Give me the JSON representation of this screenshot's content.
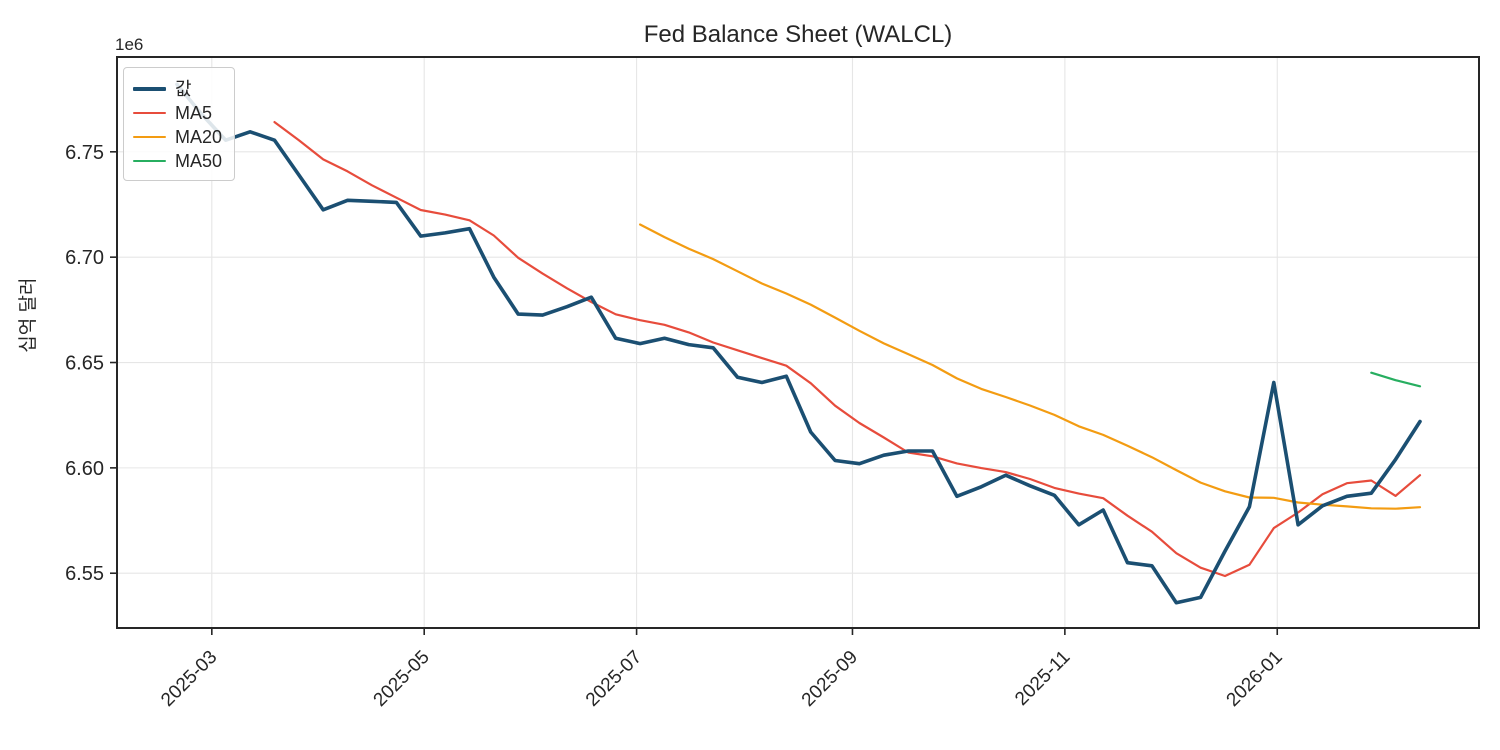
{
  "figure": {
    "background": "#ffffff",
    "text_color": "#262626",
    "grid_color": "#e6e6e6",
    "spine_color": "#262626"
  },
  "chart_data": {
    "type": "line",
    "title": "Fed Balance Sheet (WALCL)",
    "xlabel": "",
    "ylabel": "십억 달러",
    "y_axis_multiplier": "1e6",
    "grid": true,
    "legend_position": "upper-left",
    "x_tick_labels": [
      "2025-03",
      "2025-05",
      "2025-07",
      "2025-09",
      "2025-11",
      "2026-01"
    ],
    "y_ticks": [
      6.55,
      6.6,
      6.65,
      6.7,
      6.75
    ],
    "ylim": [
      6.524,
      6.795
    ],
    "x_start_date": "2025-02-19",
    "x_frequency": "weekly",
    "dates": [
      "2025-02-19",
      "2025-02-26",
      "2025-03-05",
      "2025-03-12",
      "2025-03-19",
      "2025-03-26",
      "2025-04-02",
      "2025-04-09",
      "2025-04-16",
      "2025-04-23",
      "2025-04-30",
      "2025-05-07",
      "2025-05-14",
      "2025-05-21",
      "2025-05-28",
      "2025-06-04",
      "2025-06-11",
      "2025-06-18",
      "2025-06-25",
      "2025-07-02",
      "2025-07-09",
      "2025-07-16",
      "2025-07-23",
      "2025-07-30",
      "2025-08-06",
      "2025-08-13",
      "2025-08-20",
      "2025-08-27",
      "2025-09-03",
      "2025-09-10",
      "2025-09-17",
      "2025-09-24",
      "2025-10-01",
      "2025-10-08",
      "2025-10-15",
      "2025-10-22",
      "2025-10-29",
      "2025-11-05",
      "2025-11-12",
      "2025-11-19",
      "2025-11-26",
      "2025-12-03",
      "2025-12-10",
      "2025-12-17",
      "2025-12-24",
      "2025-12-31",
      "2026-01-07",
      "2026-01-14",
      "2026-01-21",
      "2026-01-28",
      "2026-02-04",
      "2026-02-11"
    ],
    "values_unit": "millions of USD x 1e6 (axis offset 1e6)",
    "series": [
      {
        "key": "value",
        "name": "값",
        "color": "#1b4f72",
        "line_width": 3.6,
        "values": [
          6.782,
          6.768,
          6.7555,
          6.7595,
          6.7555,
          6.739,
          6.7225,
          6.727,
          6.7265,
          6.726,
          6.71,
          6.7115,
          6.7135,
          6.6905,
          6.673,
          6.6725,
          6.6765,
          6.681,
          6.6615,
          6.659,
          6.6615,
          6.6585,
          6.657,
          6.643,
          6.6405,
          6.6435,
          6.617,
          6.6035,
          6.602,
          6.606,
          6.608,
          6.608,
          6.5865,
          6.591,
          6.5965,
          6.5915,
          6.587,
          6.573,
          6.58,
          6.555,
          6.5535,
          6.536,
          6.5385,
          6.5605,
          6.5815,
          6.6405,
          6.573,
          6.582,
          6.5865,
          6.588,
          6.604,
          6.622
        ]
      },
      {
        "key": "ma5",
        "name": "MA5",
        "color": "#e74c3c",
        "line_width": 2.2,
        "derived": "rolling_mean_of_value",
        "window": 5
      },
      {
        "key": "ma20",
        "name": "MA20",
        "color": "#f39c12",
        "line_width": 2.2,
        "derived": "rolling_mean_of_value",
        "window": 20
      },
      {
        "key": "ma50",
        "name": "MA50",
        "color": "#27ae60",
        "line_width": 2.2,
        "derived": "rolling_mean_of_value",
        "window": 50
      }
    ]
  }
}
